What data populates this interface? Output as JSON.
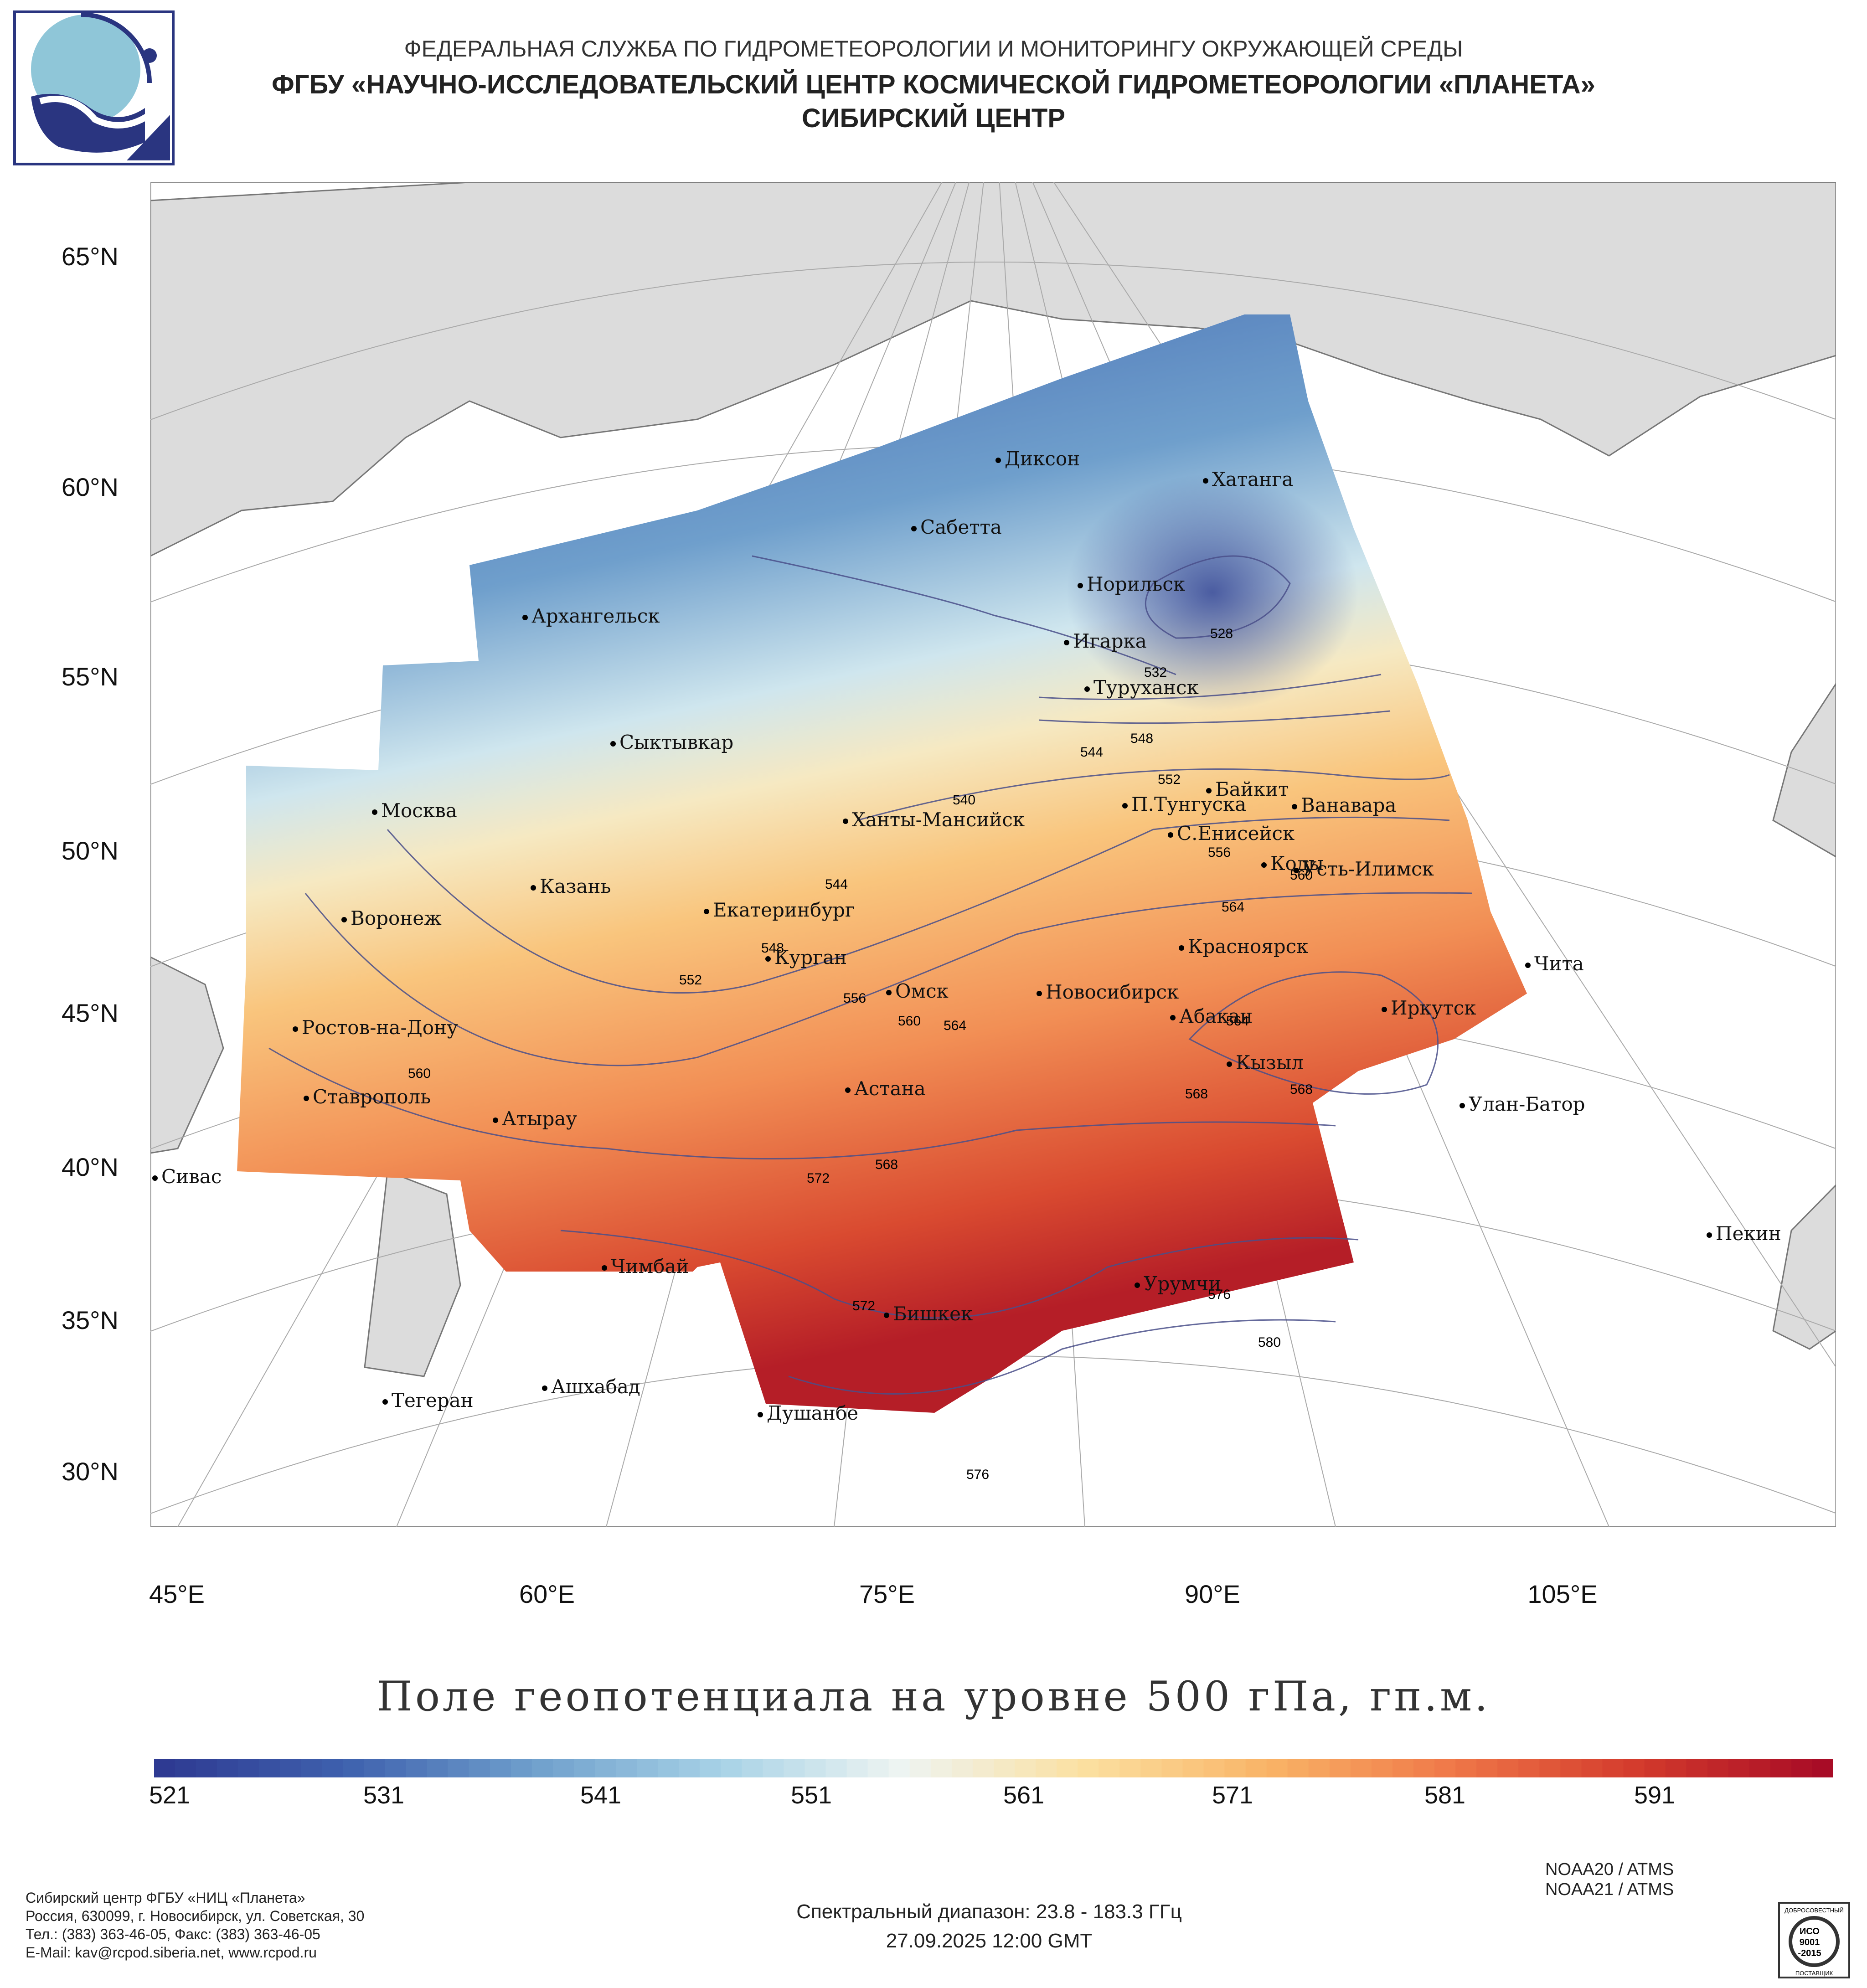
{
  "header": {
    "line1": "ФЕДЕРАЛЬНАЯ СЛУЖБА ПО ГИДРОМЕТЕОРОЛОГИИ И МОНИТОРИНГУ ОКРУЖАЮЩЕЙ СРЕДЫ",
    "line2": "ФГБУ «НАУЧНО-ИССЛЕДОВАТЕЛЬСКИЙ ЦЕНТР КОСМИЧЕСКОЙ ГИДРОМЕТЕОРОЛОГИИ «ПЛАНЕТА»",
    "line3": "СИБИРСКИЙ ЦЕНТР"
  },
  "map": {
    "lat_labels": [
      "65°N",
      "60°N",
      "55°N",
      "50°N",
      "45°N",
      "40°N",
      "35°N",
      "30°N"
    ],
    "lon_labels": [
      "45°E",
      "60°E",
      "75°E",
      "90°E",
      "105°E"
    ],
    "cities": [
      "Диксон",
      "Хатанга",
      "Сабетта",
      "Норильск",
      "Игарка",
      "Архангельск",
      "Туруханск",
      "Сыктывкар",
      "Байкит",
      "Москва",
      "П.Тунгуска",
      "Ванавара",
      "Ханты-Мансийск",
      "С.Енисейск",
      "Коды",
      "Усть-Илимск",
      "Казань",
      "Екатеринбург",
      "Воронеж",
      "Красноярск",
      "Курган",
      "Чита",
      "Омск",
      "Новосибирск",
      "Иркутск",
      "Ростов-на-Дону",
      "Абакан",
      "Кызыл",
      "Ставрополь",
      "Астана",
      "Улан-Батор",
      "Атырау",
      "Сивас",
      "Чимбай",
      "Пекин",
      "Урумчи",
      "Бишкек",
      "Ашхабад",
      "Тегеран",
      "Душанбе"
    ],
    "contour_labels": [
      "528",
      "532",
      "544",
      "548",
      "540",
      "552",
      "544",
      "548",
      "552",
      "556",
      "560",
      "556",
      "560",
      "564",
      "564",
      "564",
      "560",
      "568",
      "568",
      "572",
      "568",
      "572",
      "576",
      "580",
      "576"
    ]
  },
  "map_title": "Поле геопотенциала на уровне 500 гПа, гп.м.",
  "colorbar": {
    "ticks": [
      "521",
      "531",
      "541",
      "551",
      "561",
      "571",
      "581",
      "591"
    ],
    "min": 521,
    "max": 601,
    "colors": [
      "#2e3a92",
      "#3f62ae",
      "#6f9fcc",
      "#a6d1e6",
      "#eef4f2",
      "#fbe0a0",
      "#f9b366",
      "#ef7748",
      "#d33a2c",
      "#a80c26"
    ]
  },
  "footer": {
    "org": "Сибирский центр ФГБУ «НИЦ «Планета»",
    "address": "Россия, 630099, г. Новосибирск, ул. Советская, 30",
    "phone": "Тел.: (383) 363-46-05, Факс: (383) 363-46-05",
    "email": "E-Mail: kav@rcpod.siberia.net, www.rcpod.ru",
    "satellite1": "NOAA20 / ATMS",
    "satellite2": "NOAA21 / ATMS",
    "spectral": "Спектральный диапазон: 23.8 - 183.3 ГГц",
    "datetime": "27.09.2025 12:00 GMT",
    "cert_top": "ДОБРОСОВЕСТНЫЙ",
    "cert_mid1": "ИСО",
    "cert_mid2": "9001",
    "cert_mid3": "-2015",
    "cert_bottom": "ПОСТАВЩИК"
  }
}
